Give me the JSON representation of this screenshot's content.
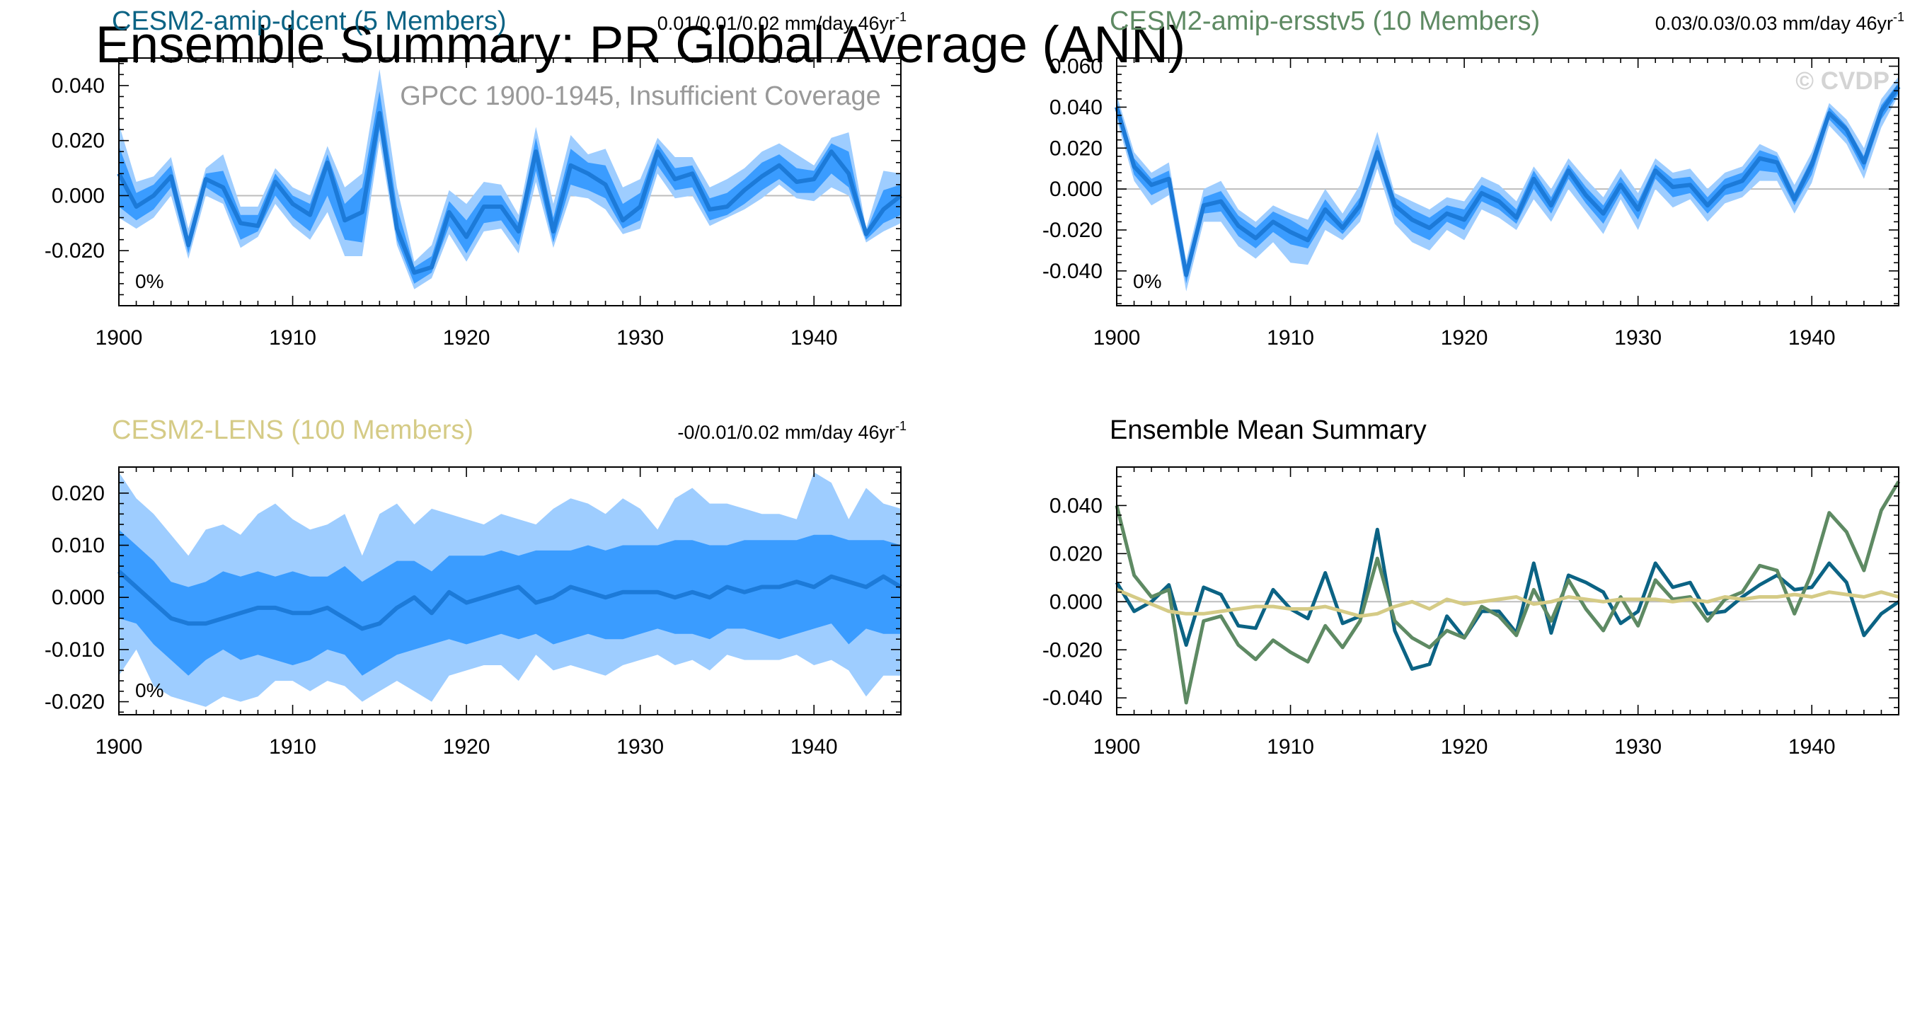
{
  "figure": {
    "title": "Ensemble Summary: PR Global Average (ANN)",
    "subtitle": "GPCC 1900-1945, Insufficient Coverage",
    "watermark": "© CVDP"
  },
  "colors": {
    "band_outer": "#9ecdff",
    "band_inner": "#3a9cff",
    "mean_line": "#1c7ad8",
    "dcent": "#0b6384",
    "ersst": "#5e8a63",
    "lens": "#d5cb86",
    "summary_title": "#000000"
  },
  "chart_data": [
    {
      "type": "area",
      "id": "dcent",
      "title": "CESM2-amip-dcent (5 Members)",
      "trend_text": "0.01/0.01/0.02 mm/day 46yr",
      "trend_sup": "-1",
      "pct_label": "0%",
      "x_start": 1900,
      "xlim": [
        1900,
        1945
      ],
      "xticks": [
        1900,
        1910,
        1920,
        1930,
        1940
      ],
      "ylim": [
        -0.04,
        0.05
      ],
      "yticks": [
        -0.02,
        0.0,
        0.02,
        0.04
      ],
      "ytick_labels": [
        "-0.020",
        "0.000",
        "0.020",
        "0.040"
      ],
      "mean": [
        0.008,
        -0.004,
        0.0,
        0.007,
        -0.018,
        0.006,
        0.003,
        -0.01,
        -0.011,
        0.005,
        -0.003,
        -0.007,
        0.012,
        -0.009,
        -0.006,
        0.03,
        -0.012,
        -0.028,
        -0.026,
        -0.006,
        -0.015,
        -0.004,
        -0.004,
        -0.013,
        0.016,
        -0.013,
        0.011,
        0.008,
        0.004,
        -0.009,
        -0.004,
        0.016,
        0.006,
        0.008,
        -0.005,
        -0.004,
        0.002,
        0.007,
        0.011,
        0.005,
        0.006,
        0.016,
        0.008,
        -0.014,
        -0.005,
        0.0
      ],
      "lower": [
        -0.008,
        -0.012,
        -0.008,
        0.0,
        -0.023,
        0.0,
        -0.003,
        -0.019,
        -0.015,
        -0.003,
        -0.011,
        -0.016,
        -0.006,
        -0.022,
        -0.022,
        0.02,
        -0.018,
        -0.034,
        -0.03,
        -0.014,
        -0.024,
        -0.013,
        -0.012,
        -0.021,
        0.005,
        -0.019,
        0.0,
        -0.001,
        -0.005,
        -0.014,
        -0.012,
        0.008,
        -0.001,
        0.0,
        -0.011,
        -0.008,
        -0.005,
        -0.001,
        0.004,
        -0.001,
        -0.002,
        0.003,
        0.0,
        -0.017,
        -0.013,
        -0.01
      ],
      "upper": [
        0.026,
        0.005,
        0.007,
        0.014,
        -0.012,
        0.01,
        0.015,
        -0.004,
        -0.004,
        0.01,
        0.003,
        0.0,
        0.018,
        0.003,
        0.008,
        0.046,
        0.003,
        -0.024,
        -0.018,
        0.002,
        -0.003,
        0.005,
        0.004,
        -0.007,
        0.025,
        -0.003,
        0.022,
        0.015,
        0.017,
        0.003,
        0.006,
        0.021,
        0.014,
        0.014,
        0.003,
        0.006,
        0.01,
        0.016,
        0.019,
        0.015,
        0.011,
        0.021,
        0.023,
        -0.012,
        0.009,
        0.008
      ],
      "inner_lower": [
        -0.004,
        -0.009,
        -0.005,
        0.003,
        -0.021,
        0.003,
        -0.001,
        -0.016,
        -0.013,
        0.0,
        -0.008,
        -0.013,
        0.0,
        -0.016,
        -0.017,
        0.024,
        -0.016,
        -0.032,
        -0.028,
        -0.011,
        -0.021,
        -0.01,
        -0.009,
        -0.018,
        0.009,
        -0.017,
        0.004,
        0.002,
        -0.001,
        -0.012,
        -0.009,
        0.011,
        0.002,
        0.003,
        -0.009,
        -0.007,
        -0.003,
        0.002,
        0.006,
        0.001,
        0.001,
        0.008,
        0.003,
        -0.016,
        -0.01,
        -0.007
      ],
      "inner_upper": [
        0.018,
        0.001,
        0.004,
        0.011,
        -0.015,
        0.008,
        0.009,
        -0.007,
        -0.007,
        0.008,
        0.0,
        -0.003,
        0.015,
        -0.003,
        0.003,
        0.038,
        -0.004,
        -0.026,
        -0.022,
        -0.002,
        -0.009,
        0.0,
        0.0,
        -0.01,
        0.021,
        -0.008,
        0.017,
        0.012,
        0.011,
        -0.003,
        0.001,
        0.019,
        0.01,
        0.011,
        -0.001,
        0.001,
        0.006,
        0.012,
        0.015,
        0.01,
        0.009,
        0.019,
        0.016,
        -0.013,
        0.002,
        0.004
      ]
    },
    {
      "type": "area",
      "id": "ersst",
      "title": "CESM2-amip-ersstv5 (10 Members)",
      "trend_text": "0.03/0.03/0.03 mm/day 46yr",
      "trend_sup": "-1",
      "pct_label": "0%",
      "x_start": 1900,
      "xlim": [
        1900,
        1945
      ],
      "xticks": [
        1900,
        1910,
        1920,
        1930,
        1940
      ],
      "ylim": [
        -0.057,
        0.064
      ],
      "yticks": [
        -0.04,
        -0.02,
        0.0,
        0.02,
        0.04,
        0.06
      ],
      "ytick_labels": [
        "-0.040",
        "-0.020",
        "0.000",
        "0.020",
        "0.040",
        "0.060"
      ],
      "mean": [
        0.04,
        0.011,
        0.002,
        0.005,
        -0.042,
        -0.008,
        -0.006,
        -0.018,
        -0.024,
        -0.016,
        -0.021,
        -0.025,
        -0.01,
        -0.019,
        -0.008,
        0.018,
        -0.008,
        -0.015,
        -0.019,
        -0.012,
        -0.015,
        -0.002,
        -0.006,
        -0.014,
        0.005,
        -0.008,
        0.009,
        -0.003,
        -0.012,
        0.002,
        -0.01,
        0.009,
        0.001,
        0.002,
        -0.008,
        0.001,
        0.004,
        0.015,
        0.013,
        -0.005,
        0.012,
        0.037,
        0.029,
        0.013,
        0.038,
        0.05
      ],
      "lower": [
        0.034,
        0.004,
        -0.008,
        -0.003,
        -0.05,
        -0.016,
        -0.016,
        -0.028,
        -0.034,
        -0.026,
        -0.036,
        -0.037,
        -0.02,
        -0.025,
        -0.016,
        0.01,
        -0.017,
        -0.026,
        -0.03,
        -0.02,
        -0.025,
        -0.01,
        -0.014,
        -0.02,
        -0.005,
        -0.016,
        0.0,
        -0.011,
        -0.022,
        -0.005,
        -0.02,
        0.0,
        -0.009,
        -0.005,
        -0.016,
        -0.007,
        -0.004,
        0.004,
        0.004,
        -0.012,
        0.003,
        0.031,
        0.022,
        0.005,
        0.03,
        0.046
      ],
      "upper": [
        0.046,
        0.018,
        0.008,
        0.013,
        -0.035,
        0.0,
        0.004,
        -0.01,
        -0.016,
        -0.008,
        -0.012,
        -0.015,
        0.0,
        -0.012,
        0.002,
        0.028,
        -0.002,
        -0.006,
        -0.01,
        -0.004,
        -0.006,
        0.006,
        0.002,
        -0.006,
        0.011,
        0.0,
        0.015,
        0.005,
        -0.004,
        0.01,
        -0.002,
        0.015,
        0.008,
        0.01,
        0.0,
        0.008,
        0.011,
        0.022,
        0.018,
        0.002,
        0.018,
        0.042,
        0.034,
        0.02,
        0.044,
        0.055
      ],
      "inner_lower": [
        0.037,
        0.007,
        -0.003,
        0.001,
        -0.046,
        -0.012,
        -0.011,
        -0.023,
        -0.029,
        -0.021,
        -0.027,
        -0.029,
        -0.015,
        -0.022,
        -0.012,
        0.014,
        -0.013,
        -0.021,
        -0.025,
        -0.016,
        -0.02,
        -0.006,
        -0.01,
        -0.017,
        0.0,
        -0.012,
        0.005,
        -0.007,
        -0.017,
        -0.002,
        -0.015,
        0.005,
        -0.004,
        -0.002,
        -0.012,
        -0.003,
        -0.001,
        0.009,
        0.008,
        -0.008,
        0.007,
        0.034,
        0.025,
        0.009,
        0.034,
        0.047
      ],
      "inner_upper": [
        0.043,
        0.015,
        0.005,
        0.009,
        -0.038,
        -0.004,
        -0.001,
        -0.013,
        -0.019,
        -0.011,
        -0.015,
        -0.02,
        -0.005,
        -0.016,
        -0.004,
        0.022,
        -0.004,
        -0.01,
        -0.014,
        -0.008,
        -0.01,
        0.002,
        -0.002,
        -0.01,
        0.009,
        -0.004,
        0.012,
        0.001,
        -0.008,
        0.006,
        -0.006,
        0.012,
        0.005,
        0.006,
        -0.004,
        0.005,
        0.008,
        0.019,
        0.016,
        -0.002,
        0.015,
        0.04,
        0.031,
        0.016,
        0.041,
        0.052
      ]
    },
    {
      "type": "area",
      "id": "lens",
      "title": "CESM2-LENS (100 Members)",
      "trend_text": "-0/0.01/0.02 mm/day 46yr",
      "trend_sup": "-1",
      "pct_label": "0%",
      "x_start": 1900,
      "xlim": [
        1900,
        1945
      ],
      "xticks": [
        1900,
        1910,
        1920,
        1930,
        1940
      ],
      "ylim": [
        -0.0225,
        0.025
      ],
      "yticks": [
        -0.02,
        -0.01,
        0.0,
        0.01,
        0.02
      ],
      "ytick_labels": [
        "-0.020",
        "-0.010",
        "0.000",
        "0.010",
        "0.020"
      ],
      "mean": [
        0.005,
        0.002,
        -0.001,
        -0.004,
        -0.005,
        -0.005,
        -0.004,
        -0.003,
        -0.002,
        -0.002,
        -0.003,
        -0.003,
        -0.002,
        -0.004,
        -0.006,
        -0.005,
        -0.002,
        0.0,
        -0.003,
        0.001,
        -0.001,
        0.0,
        0.001,
        0.002,
        -0.001,
        0.0,
        0.002,
        0.001,
        0.0,
        0.001,
        0.001,
        0.001,
        0.0,
        0.001,
        0.0,
        0.002,
        0.001,
        0.002,
        0.002,
        0.003,
        0.002,
        0.004,
        0.003,
        0.002,
        0.004,
        0.002
      ],
      "lower": [
        -0.015,
        -0.01,
        -0.017,
        -0.019,
        -0.02,
        -0.021,
        -0.019,
        -0.02,
        -0.019,
        -0.016,
        -0.016,
        -0.018,
        -0.016,
        -0.017,
        -0.02,
        -0.018,
        -0.016,
        -0.018,
        -0.02,
        -0.015,
        -0.014,
        -0.013,
        -0.013,
        -0.016,
        -0.011,
        -0.014,
        -0.013,
        -0.014,
        -0.015,
        -0.013,
        -0.012,
        -0.011,
        -0.013,
        -0.012,
        -0.014,
        -0.011,
        -0.012,
        -0.012,
        -0.012,
        -0.011,
        -0.013,
        -0.012,
        -0.014,
        -0.019,
        -0.015,
        -0.015
      ],
      "upper": [
        0.024,
        0.019,
        0.016,
        0.012,
        0.008,
        0.013,
        0.014,
        0.012,
        0.016,
        0.018,
        0.015,
        0.013,
        0.014,
        0.016,
        0.008,
        0.016,
        0.018,
        0.014,
        0.017,
        0.016,
        0.015,
        0.014,
        0.016,
        0.015,
        0.014,
        0.017,
        0.019,
        0.018,
        0.016,
        0.019,
        0.017,
        0.013,
        0.019,
        0.021,
        0.018,
        0.018,
        0.017,
        0.016,
        0.016,
        0.015,
        0.024,
        0.022,
        0.015,
        0.021,
        0.018,
        0.017
      ],
      "inner_lower": [
        -0.004,
        -0.005,
        -0.009,
        -0.012,
        -0.015,
        -0.012,
        -0.01,
        -0.012,
        -0.011,
        -0.012,
        -0.013,
        -0.012,
        -0.01,
        -0.011,
        -0.015,
        -0.013,
        -0.011,
        -0.01,
        -0.009,
        -0.008,
        -0.009,
        -0.008,
        -0.007,
        -0.008,
        -0.007,
        -0.009,
        -0.008,
        -0.007,
        -0.008,
        -0.008,
        -0.007,
        -0.006,
        -0.007,
        -0.007,
        -0.008,
        -0.006,
        -0.006,
        -0.007,
        -0.008,
        -0.007,
        -0.006,
        -0.005,
        -0.009,
        -0.006,
        -0.007,
        -0.007
      ],
      "inner_upper": [
        0.013,
        0.01,
        0.007,
        0.003,
        0.002,
        0.003,
        0.005,
        0.004,
        0.005,
        0.004,
        0.005,
        0.004,
        0.004,
        0.006,
        0.003,
        0.005,
        0.007,
        0.007,
        0.005,
        0.008,
        0.008,
        0.008,
        0.009,
        0.008,
        0.009,
        0.009,
        0.009,
        0.01,
        0.009,
        0.01,
        0.01,
        0.01,
        0.011,
        0.011,
        0.01,
        0.01,
        0.011,
        0.011,
        0.011,
        0.011,
        0.012,
        0.012,
        0.011,
        0.011,
        0.011,
        0.01
      ]
    },
    {
      "type": "line",
      "id": "summary",
      "title": "Ensemble Mean Summary",
      "x_start": 1900,
      "xlim": [
        1900,
        1945
      ],
      "xticks": [
        1900,
        1910,
        1920,
        1930,
        1940
      ],
      "ylim": [
        -0.047,
        0.056
      ],
      "yticks": [
        -0.04,
        -0.02,
        0.0,
        0.02,
        0.04
      ],
      "ytick_labels": [
        "-0.040",
        "-0.020",
        "0.000",
        "0.020",
        "0.040"
      ],
      "series": [
        {
          "name": "CESM2-amip-dcent",
          "color_key": "dcent",
          "values": [
            0.008,
            -0.004,
            0.0,
            0.007,
            -0.018,
            0.006,
            0.003,
            -0.01,
            -0.011,
            0.005,
            -0.003,
            -0.007,
            0.012,
            -0.009,
            -0.006,
            0.03,
            -0.012,
            -0.028,
            -0.026,
            -0.006,
            -0.015,
            -0.004,
            -0.004,
            -0.013,
            0.016,
            -0.013,
            0.011,
            0.008,
            0.004,
            -0.009,
            -0.004,
            0.016,
            0.006,
            0.008,
            -0.005,
            -0.004,
            0.002,
            0.007,
            0.011,
            0.005,
            0.006,
            0.016,
            0.008,
            -0.014,
            -0.005,
            0.0
          ]
        },
        {
          "name": "CESM2-amip-ersstv5",
          "color_key": "ersst",
          "values": [
            0.04,
            0.011,
            0.002,
            0.005,
            -0.042,
            -0.008,
            -0.006,
            -0.018,
            -0.024,
            -0.016,
            -0.021,
            -0.025,
            -0.01,
            -0.019,
            -0.008,
            0.018,
            -0.008,
            -0.015,
            -0.019,
            -0.012,
            -0.015,
            -0.002,
            -0.006,
            -0.014,
            0.005,
            -0.008,
            0.009,
            -0.003,
            -0.012,
            0.002,
            -0.01,
            0.009,
            0.001,
            0.002,
            -0.008,
            0.001,
            0.004,
            0.015,
            0.013,
            -0.005,
            0.012,
            0.037,
            0.029,
            0.013,
            0.038,
            0.05
          ]
        },
        {
          "name": "CESM2-LENS",
          "color_key": "lens",
          "values": [
            0.005,
            0.002,
            -0.001,
            -0.004,
            -0.005,
            -0.005,
            -0.004,
            -0.003,
            -0.002,
            -0.002,
            -0.003,
            -0.003,
            -0.002,
            -0.004,
            -0.006,
            -0.005,
            -0.002,
            0.0,
            -0.003,
            0.001,
            -0.001,
            0.0,
            0.001,
            0.002,
            -0.001,
            0.0,
            0.002,
            0.001,
            0.0,
            0.001,
            0.001,
            0.001,
            0.0,
            0.001,
            0.0,
            0.002,
            0.001,
            0.002,
            0.002,
            0.003,
            0.002,
            0.004,
            0.003,
            0.002,
            0.004,
            0.002
          ]
        }
      ]
    }
  ]
}
